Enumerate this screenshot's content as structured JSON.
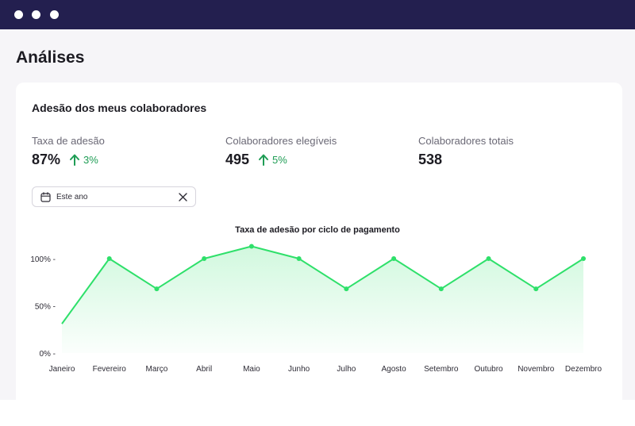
{
  "window": {
    "accent": "#231f4f"
  },
  "page": {
    "title": "Análises"
  },
  "card": {
    "title": "Adesão dos meus colaboradores",
    "metrics": [
      {
        "label": "Taxa de adesão",
        "value": "87%",
        "delta": "3%",
        "trend": "up"
      },
      {
        "label": "Colaboradores elegíveis",
        "value": "495",
        "delta": "5%",
        "trend": "up"
      },
      {
        "label": "Colaboradores totais",
        "value": "538"
      }
    ],
    "date_filter": {
      "value": "Este ano",
      "icon": "calendar-icon",
      "clear_icon": "close-icon"
    }
  },
  "chart_data": {
    "type": "area",
    "title": "Taxa de adesão por ciclo de pagamento",
    "categories": [
      "Janeiro",
      "Fevereiro",
      "Março",
      "Abril",
      "Maio",
      "Junho",
      "Julho",
      "Agosto",
      "Setembro",
      "Outubro",
      "Novembro",
      "Dezembro"
    ],
    "values": [
      31,
      100,
      68,
      100,
      113,
      100,
      68,
      100,
      68,
      100,
      68,
      100
    ],
    "y_ticks": [
      "100% -",
      "50% -",
      "0% -"
    ],
    "y_tick_values": [
      100,
      50,
      0
    ],
    "ylim": [
      0,
      100
    ],
    "grid": false,
    "line_color": "#2ee06a"
  }
}
